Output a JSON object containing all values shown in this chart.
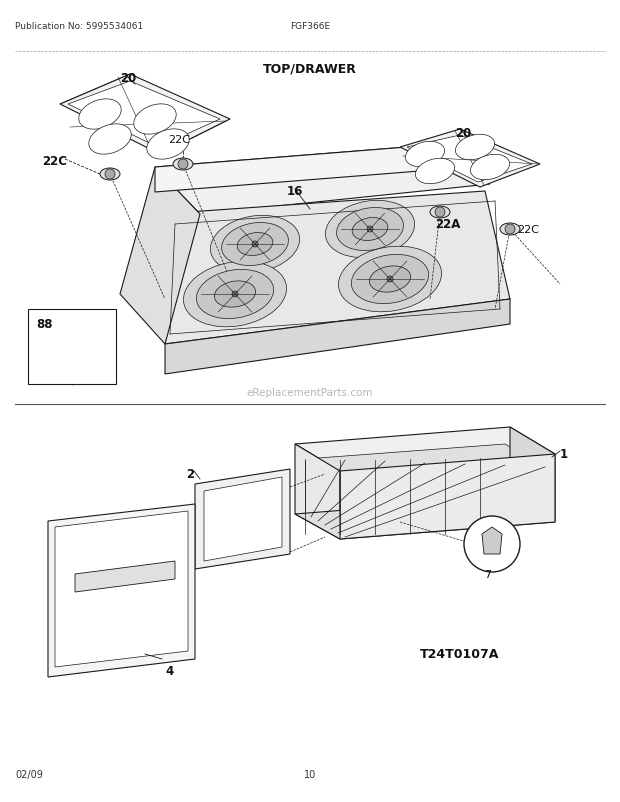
{
  "pub_no": "Publication No: 5995534061",
  "model": "FGF366E",
  "section": "TOP/DRAWER",
  "diagram_code": "T24T0107A",
  "date": "02/09",
  "page": "10",
  "watermark": "eReplacementParts.com",
  "bg_color": "#ffffff",
  "lc": "#1a1a1a",
  "lw": 0.8,
  "lw_thin": 0.5
}
